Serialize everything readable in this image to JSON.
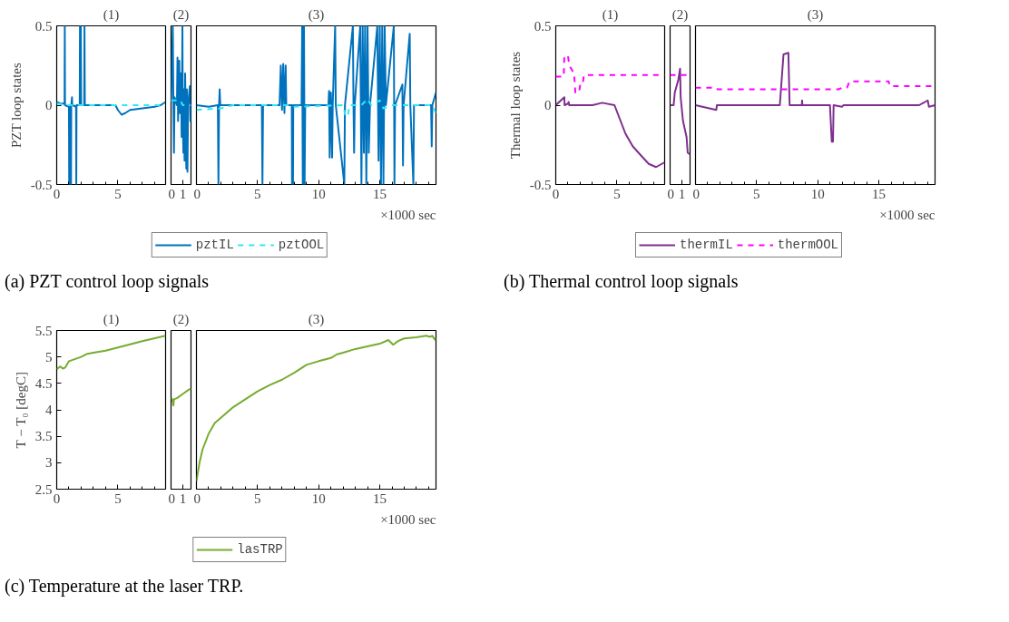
{
  "chart_data": [
    {
      "type": "line",
      "title": "(1)",
      "ylabel": "PZT loop states",
      "annotations": [
        "(a) PZT control loop signals"
      ],
      "xlim": [
        0,
        8.9
      ],
      "xticks": [
        0,
        {
          "value": 1,
          "label": null
        },
        {
          "value": 2,
          "label": null
        },
        {
          "value": 3,
          "label": null
        },
        {
          "value": 4,
          "label": null
        },
        5,
        {
          "value": 6,
          "label": null
        },
        {
          "value": 7,
          "label": null
        },
        {
          "value": 8,
          "label": null
        }
      ],
      "ylim": [
        -0.5,
        0.5
      ],
      "yticks": [
        -0.5,
        0,
        0.5
      ],
      "series": [
        {
          "color": "#0072bd",
          "x": [
            0,
            0.3,
            0.64,
            0.66,
            0.68,
            1.0,
            1.02,
            1.04,
            1.15,
            1.17,
            1.19,
            1.25,
            1.27,
            1.3,
            1.58,
            1.6,
            1.62,
            1.88,
            1.9,
            1.97,
            2.0,
            2.25,
            2.27,
            2.3,
            3,
            4,
            4.8,
            5.0,
            5.3,
            5.6,
            6,
            7,
            8,
            8.5,
            8.9
          ],
          "values": [
            0.02,
            0.01,
            0.01,
            0.5,
            0.0,
            -0.01,
            -0.5,
            0.0,
            -0.01,
            -0.5,
            0.0,
            0.05,
            0.0,
            0.0,
            -0.01,
            -0.5,
            0.0,
            0.0,
            0.5,
            0.5,
            0.0,
            0.0,
            0.5,
            0.0,
            0.0,
            0.0,
            0.0,
            -0.03,
            -0.06,
            -0.05,
            -0.03,
            -0.02,
            -0.01,
            0.0,
            0.02
          ]
        },
        {
          "color": "#2ce8f5",
          "line_style": "dashed",
          "x": [
            0,
            1,
            3,
            5,
            5.5,
            8.9
          ],
          "values": [
            0.01,
            0.0,
            0.0,
            0.0,
            0.0,
            0.0
          ]
        }
      ]
    },
    {
      "type": "line",
      "title": "(2)",
      "tick_labels": "x",
      "xlim": [
        0,
        1.7
      ],
      "xticks": [
        0,
        1
      ],
      "ylim": [
        -0.5,
        0.5
      ],
      "yticks": [
        -0.5,
        0,
        0.5
      ],
      "series": [
        {
          "color": "#0072bd",
          "x": [
            0,
            0.15,
            0.2,
            0.25,
            0.3,
            0.5,
            0.55,
            0.6,
            0.7,
            0.75,
            0.85,
            0.9,
            0.97,
            1.0,
            1.05,
            1.1,
            1.15,
            1.2,
            1.3,
            1.35,
            1.4,
            1.45,
            1.6,
            1.65,
            1.7
          ],
          "values": [
            0.02,
            0.5,
            0.0,
            -0.3,
            0.05,
            0.0,
            0.3,
            -0.1,
            0.28,
            -0.05,
            0.2,
            -0.2,
            0.5,
            -0.1,
            -0.3,
            0.1,
            -0.35,
            0.2,
            -0.4,
            0.1,
            -0.42,
            0.0,
            0.12,
            -0.1,
            0.0
          ]
        },
        {
          "color": "#2ce8f5",
          "line_style": "dashed",
          "x": [
            0,
            0.8,
            1.0,
            1.7
          ],
          "values": [
            0.03,
            0.03,
            0.0,
            0.0
          ]
        }
      ]
    },
    {
      "type": "line",
      "title": "(3)",
      "tick_labels": "x",
      "xlabel": "×1000 sec",
      "legend": "bottom",
      "xlim": [
        0,
        19.6
      ],
      "xticks": [
        0,
        {
          "value": 1,
          "label": null
        },
        {
          "value": 2,
          "label": null
        },
        {
          "value": 3,
          "label": null
        },
        {
          "value": 4,
          "label": null
        },
        5,
        {
          "value": 6,
          "label": null
        },
        {
          "value": 7,
          "label": null
        },
        {
          "value": 8,
          "label": null
        },
        {
          "value": 9,
          "label": null
        },
        10,
        {
          "value": 11,
          "label": null
        },
        {
          "value": 12,
          "label": null
        },
        {
          "value": 13,
          "label": null
        },
        {
          "value": 14,
          "label": null
        },
        15,
        {
          "value": 16,
          "label": null
        },
        {
          "value": 17,
          "label": null
        },
        {
          "value": 18,
          "label": null
        },
        {
          "value": 19,
          "label": null
        }
      ],
      "ylim": [
        -0.5,
        0.5
      ],
      "yticks": [
        -0.5,
        0,
        0.5
      ],
      "series": [
        {
          "name": "pztIL",
          "color": "#0072bd",
          "x": [
            0,
            1.0,
            1.75,
            1.8,
            1.85,
            1.9,
            1.95,
            3.0,
            5.35,
            5.4,
            5.45,
            6.8,
            6.9,
            7.0,
            7.1,
            7.2,
            7.3,
            7.35,
            7.8,
            7.82,
            7.9,
            7.92,
            8.6,
            8.65,
            8.7,
            8.8,
            8.85,
            8.9,
            10.8,
            10.85,
            10.9,
            11.0,
            11.1,
            11.15,
            11.35,
            11.4,
            12.1,
            12.15,
            12.8,
            12.85,
            12.9,
            12.95,
            13.4,
            13.5,
            13.6,
            13.7,
            13.8,
            13.9,
            14.0,
            14.1,
            14.2,
            14.8,
            14.9,
            15.0,
            15.1,
            15.2,
            15.3,
            15.4,
            15.5,
            16.15,
            16.2,
            16.25,
            16.85,
            16.9,
            16.95,
            17.45,
            17.5,
            17.75,
            17.8,
            19.2,
            19.25,
            19.3,
            19.6
          ],
          "values": [
            0.0,
            -0.01,
            0.0,
            -0.5,
            0.0,
            0.1,
            0.0,
            0.0,
            0.0,
            -0.5,
            0.0,
            0.0,
            0.25,
            -0.03,
            0.26,
            -0.05,
            0.25,
            0.0,
            0.0,
            -0.5,
            -0.5,
            0.0,
            0.0,
            0.5,
            -0.5,
            0.5,
            -0.5,
            0.0,
            0.0,
            0.09,
            -0.33,
            0.08,
            -0.33,
            0.0,
            0.5,
            0.0,
            -0.5,
            0.0,
            0.5,
            0.0,
            -0.3,
            0.0,
            0.5,
            -0.5,
            0.5,
            -0.3,
            0.5,
            -0.5,
            0.5,
            -0.3,
            0.0,
            0.5,
            -0.35,
            0.5,
            -0.5,
            0.5,
            -0.5,
            0.5,
            0.0,
            0.5,
            -0.5,
            0.0,
            0.13,
            -0.38,
            0.0,
            0.45,
            0.0,
            -0.5,
            0.0,
            0.0,
            -0.26,
            0.0,
            0.08
          ]
        },
        {
          "name": "pztOOL",
          "color": "#2ce8f5",
          "line_style": "dashed",
          "x": [
            0,
            2,
            3,
            7.8,
            8,
            12,
            12.2,
            12.4,
            12.5,
            13.5,
            14,
            14.3,
            15,
            15.3,
            16,
            19.3,
            19.6
          ],
          "values": [
            -0.03,
            -0.02,
            0.0,
            0.0,
            -0.01,
            0.0,
            -0.07,
            -0.07,
            0.0,
            0.0,
            0.04,
            0.0,
            0.03,
            -0.02,
            0.0,
            0.0,
            -0.05
          ]
        }
      ]
    },
    {
      "type": "line",
      "title": "(1)",
      "ylabel": "Thermal loop states",
      "annotations": [
        "(b) Thermal control loop signals"
      ],
      "xlim": [
        0,
        8.9
      ],
      "xticks": [
        0,
        {
          "value": 1,
          "label": null
        },
        {
          "value": 2,
          "label": null
        },
        {
          "value": 3,
          "label": null
        },
        {
          "value": 4,
          "label": null
        },
        5,
        {
          "value": 6,
          "label": null
        },
        {
          "value": 7,
          "label": null
        },
        {
          "value": 8,
          "label": null
        }
      ],
      "ylim": [
        -0.5,
        0.5
      ],
      "yticks": [
        -0.5,
        0,
        0.5
      ],
      "series": [
        {
          "color": "#7e2f8e",
          "x": [
            0,
            0.7,
            0.72,
            1.0,
            1.05,
            1.1,
            2,
            3,
            3.8,
            4.8,
            5.2,
            5.7,
            6.3,
            7,
            7.6,
            8.2,
            8.9
          ],
          "values": [
            0.0,
            0.05,
            0.0,
            0.01,
            0.02,
            0.0,
            0.0,
            0.0,
            0.015,
            0.0,
            -0.08,
            -0.18,
            -0.26,
            -0.32,
            -0.37,
            -0.39,
            -0.36
          ]
        },
        {
          "color": "#ff00ff",
          "line_style": "dashed",
          "x": [
            0,
            0.65,
            0.7,
            1.0,
            1.1,
            1.5,
            1.6,
            1.9,
            2.0,
            2.2,
            2.3,
            8.9
          ],
          "values": [
            0.18,
            0.18,
            0.31,
            0.31,
            0.25,
            0.2,
            0.08,
            0.08,
            0.13,
            0.13,
            0.19,
            0.19
          ]
        }
      ]
    },
    {
      "type": "line",
      "title": "(2)",
      "tick_labels": "x",
      "xlim": [
        0,
        1.7
      ],
      "xticks": [
        0,
        1
      ],
      "ylim": [
        -0.5,
        0.5
      ],
      "yticks": [
        -0.5,
        0,
        0.5
      ],
      "series": [
        {
          "color": "#7e2f8e",
          "x": [
            0,
            0.3,
            0.4,
            0.7,
            0.85,
            0.9,
            1.1,
            1.4,
            1.5,
            1.7
          ],
          "values": [
            0.0,
            0.0,
            0.08,
            0.16,
            0.23,
            0.05,
            -0.1,
            -0.2,
            -0.3,
            -0.31
          ]
        },
        {
          "color": "#ff00ff",
          "line_style": "dashed",
          "x": [
            0,
            1.7
          ],
          "values": [
            0.19,
            0.19
          ]
        }
      ]
    },
    {
      "type": "line",
      "title": "(3)",
      "tick_labels": "x",
      "xlabel": "×1000 sec",
      "legend": "bottom",
      "xlim": [
        0,
        19.6
      ],
      "xticks": [
        0,
        {
          "value": 1,
          "label": null
        },
        {
          "value": 2,
          "label": null
        },
        {
          "value": 3,
          "label": null
        },
        {
          "value": 4,
          "label": null
        },
        5,
        {
          "value": 6,
          "label": null
        },
        {
          "value": 7,
          "label": null
        },
        {
          "value": 8,
          "label": null
        },
        {
          "value": 9,
          "label": null
        },
        10,
        {
          "value": 11,
          "label": null
        },
        {
          "value": 12,
          "label": null
        },
        {
          "value": 13,
          "label": null
        },
        {
          "value": 14,
          "label": null
        },
        15,
        {
          "value": 16,
          "label": null
        },
        {
          "value": 17,
          "label": null
        },
        {
          "value": 18,
          "label": null
        },
        {
          "value": 19,
          "label": null
        }
      ],
      "ylim": [
        -0.5,
        0.5
      ],
      "yticks": [
        -0.5,
        0,
        0.5
      ],
      "series": [
        {
          "name": "thermIL",
          "color": "#7e2f8e",
          "x": [
            0,
            1.7,
            1.75,
            6.9,
            7.2,
            7.6,
            7.7,
            8.7,
            8.72,
            8.75,
            11.0,
            11.15,
            11.25,
            11.3,
            12.0,
            12.1,
            15,
            18.3,
            19.0,
            19.1,
            19.6
          ],
          "values": [
            0.0,
            -0.03,
            0.0,
            0.0,
            0.32,
            0.33,
            0.0,
            0.0,
            0.03,
            0.0,
            0.0,
            -0.23,
            -0.23,
            0.0,
            -0.01,
            0.0,
            0.0,
            0.0,
            0.03,
            -0.01,
            0.0
          ]
        },
        {
          "name": "thermOOL",
          "color": "#ff00ff",
          "line_style": "dashed",
          "x": [
            0,
            1.7,
            1.8,
            11.7,
            12.0,
            12.4,
            12.6,
            15.8,
            15.9,
            19.3,
            19.5,
            19.6
          ],
          "values": [
            0.11,
            0.11,
            0.1,
            0.1,
            0.11,
            0.11,
            0.15,
            0.15,
            0.12,
            0.12,
            0.13,
            0.13
          ]
        }
      ]
    },
    {
      "type": "line",
      "title": "(1)",
      "ylabel": "T − T₀ [degC]",
      "annotations": [
        "(c) Temperature at the laser TRP."
      ],
      "xlim": [
        0,
        8.9
      ],
      "xticks": [
        0,
        {
          "value": 1,
          "label": null
        },
        {
          "value": 2,
          "label": null
        },
        {
          "value": 3,
          "label": null
        },
        {
          "value": 4,
          "label": null
        },
        5,
        {
          "value": 6,
          "label": null
        },
        {
          "value": 7,
          "label": null
        },
        {
          "value": 8,
          "label": null
        }
      ],
      "ylim": [
        2.5,
        5.5
      ],
      "yticks": [
        2.5,
        3,
        3.5,
        4,
        4.5,
        5,
        5.5
      ],
      "series": [
        {
          "color": "#77ac30",
          "x": [
            0,
            0.3,
            0.5,
            0.7,
            1.0,
            2.0,
            2.5,
            3,
            4,
            5,
            6,
            7,
            8.9
          ],
          "values": [
            4.77,
            4.82,
            4.78,
            4.8,
            4.92,
            5.0,
            5.06,
            5.08,
            5.12,
            5.18,
            5.24,
            5.3,
            5.4
          ]
        }
      ]
    },
    {
      "type": "line",
      "title": "(2)",
      "tick_labels": "x",
      "xlim": [
        0,
        1.7
      ],
      "xticks": [
        0,
        1
      ],
      "ylim": [
        2.5,
        5.5
      ],
      "yticks": [
        2.5,
        3,
        3.5,
        4,
        4.5,
        5,
        5.5
      ],
      "series": [
        {
          "color": "#77ac30",
          "x": [
            0,
            0.1,
            0.2,
            0.25,
            0.5,
            1.0,
            1.5,
            1.7
          ],
          "values": [
            4.22,
            4.2,
            4.08,
            4.2,
            4.22,
            4.3,
            4.38,
            4.4
          ]
        }
      ]
    },
    {
      "type": "line",
      "title": "(3)",
      "tick_labels": "x",
      "xlabel": "×1000 sec",
      "legend": "bottom",
      "xlim": [
        0,
        19.6
      ],
      "xticks": [
        0,
        {
          "value": 1,
          "label": null
        },
        {
          "value": 2,
          "label": null
        },
        {
          "value": 3,
          "label": null
        },
        {
          "value": 4,
          "label": null
        },
        5,
        {
          "value": 6,
          "label": null
        },
        {
          "value": 7,
          "label": null
        },
        {
          "value": 8,
          "label": null
        },
        {
          "value": 9,
          "label": null
        },
        10,
        {
          "value": 11,
          "label": null
        },
        {
          "value": 12,
          "label": null
        },
        {
          "value": 13,
          "label": null
        },
        {
          "value": 14,
          "label": null
        },
        15,
        {
          "value": 16,
          "label": null
        },
        {
          "value": 17,
          "label": null
        },
        {
          "value": 18,
          "label": null
        },
        {
          "value": 19,
          "label": null
        }
      ],
      "ylim": [
        2.5,
        5.5
      ],
      "yticks": [
        2.5,
        3,
        3.5,
        4,
        4.5,
        5,
        5.5
      ],
      "series": [
        {
          "name": "lasTRP",
          "color": "#77ac30",
          "x": [
            0,
            0.25,
            0.5,
            1,
            1.5,
            2,
            3,
            4,
            5,
            6,
            7,
            8,
            9,
            10,
            11,
            11.5,
            12,
            13,
            14,
            15,
            15.7,
            16.1,
            16.5,
            17,
            18,
            18.8,
            19.1,
            19.3,
            19.5,
            19.6
          ],
          "values": [
            2.65,
            3.0,
            3.25,
            3.55,
            3.75,
            3.85,
            4.05,
            4.2,
            4.35,
            4.47,
            4.57,
            4.7,
            4.85,
            4.92,
            4.98,
            5.05,
            5.08,
            5.15,
            5.2,
            5.25,
            5.32,
            5.23,
            5.3,
            5.35,
            5.37,
            5.4,
            5.38,
            5.4,
            5.33,
            5.35
          ]
        }
      ]
    }
  ]
}
